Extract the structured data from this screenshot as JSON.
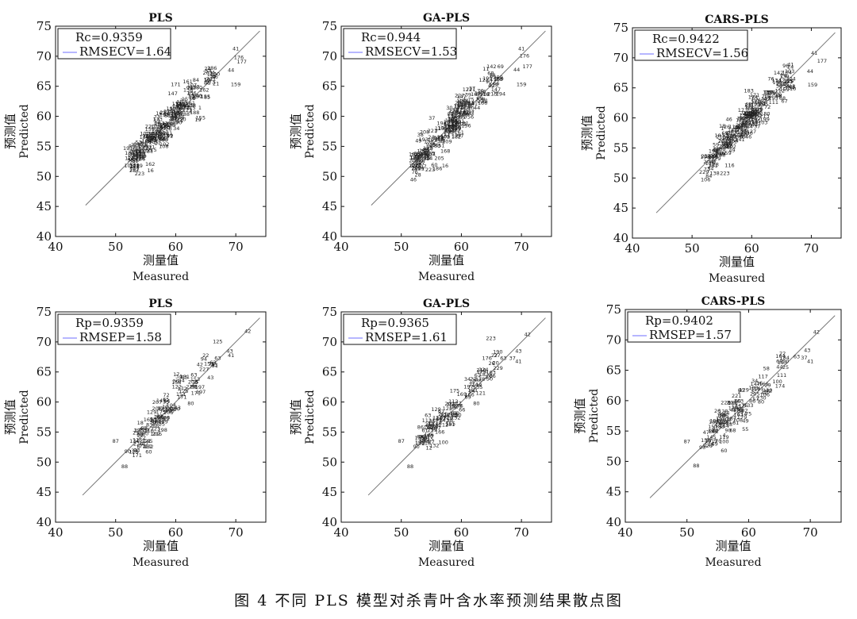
{
  "caption": "图 4   不同 PLS 模型对杀青叶含水率预测结果散点图",
  "chart_data": [
    {
      "type": "scatter",
      "title": "PLS",
      "xlabel_cn": "测量值",
      "xlabel_en": "Measured",
      "ylabel_cn": "预测值",
      "ylabel_en": "Predicted",
      "xlim": [
        40,
        75
      ],
      "ylim": [
        40,
        75
      ],
      "xticks": [
        40,
        50,
        60,
        70
      ],
      "yticks": [
        40,
        45,
        50,
        55,
        60,
        65,
        70,
        75
      ],
      "legend": [
        "Rc=0.9359",
        "RMSECV=1.64"
      ],
      "legend_position": "top-left",
      "line": [
        [
          45,
          45.2
        ],
        [
          74,
          74.2
        ]
      ],
      "labeled_points": [
        {
          "x": 70.0,
          "y": 71.0,
          "label": "41"
        },
        {
          "x": 70.5,
          "y": 69.5,
          "label": "176"
        },
        {
          "x": 71.0,
          "y": 68.8,
          "label": "177"
        },
        {
          "x": 70.0,
          "y": 65.0,
          "label": "159"
        },
        {
          "x": 69.2,
          "y": 67.4,
          "label": "44"
        },
        {
          "x": 65.3,
          "y": 67.7,
          "label": "24"
        },
        {
          "x": 60.0,
          "y": 65.0,
          "label": "171"
        },
        {
          "x": 59.5,
          "y": 63.5,
          "label": "147"
        },
        {
          "x": 62.0,
          "y": 65.5,
          "label": "161"
        },
        {
          "x": 57.5,
          "y": 60.2,
          "label": "163"
        },
        {
          "x": 57.0,
          "y": 59.2,
          "label": "173"
        },
        {
          "x": 53.7,
          "y": 51.5,
          "label": "229"
        },
        {
          "x": 53.1,
          "y": 50.7,
          "label": "287"
        },
        {
          "x": 54.0,
          "y": 50.2,
          "label": "223"
        },
        {
          "x": 55.8,
          "y": 50.7,
          "label": "16"
        },
        {
          "x": 62.5,
          "y": 60.5,
          "label": "4"
        }
      ]
    },
    {
      "type": "scatter",
      "title": "GA-PLS",
      "xlabel_cn": "测量值",
      "xlabel_en": "Measured",
      "ylabel_cn": "预测值",
      "ylabel_en": "Predicted",
      "xlim": [
        40,
        75
      ],
      "ylim": [
        40,
        75
      ],
      "xticks": [
        40,
        50,
        60,
        70
      ],
      "yticks": [
        40,
        45,
        50,
        55,
        60,
        65,
        70,
        75
      ],
      "legend": [
        "Rc=0.944",
        "RMSECV=1.53"
      ],
      "legend_position": "top-left",
      "line": [
        [
          45,
          45.2
        ],
        [
          74,
          74.2
        ]
      ],
      "labeled_points": [
        {
          "x": 70.0,
          "y": 71.0,
          "label": "41"
        },
        {
          "x": 70.5,
          "y": 69.8,
          "label": "176"
        },
        {
          "x": 71.0,
          "y": 68.0,
          "label": "177"
        },
        {
          "x": 70.0,
          "y": 65.0,
          "label": "159"
        },
        {
          "x": 69.2,
          "y": 67.5,
          "label": "44"
        },
        {
          "x": 65.0,
          "y": 68.0,
          "label": "142"
        },
        {
          "x": 61.0,
          "y": 64.2,
          "label": "171"
        },
        {
          "x": 60.0,
          "y": 63.0,
          "label": "147"
        },
        {
          "x": 58.5,
          "y": 57.5,
          "label": "232"
        },
        {
          "x": 53.0,
          "y": 51.0,
          "label": "229"
        },
        {
          "x": 56.0,
          "y": 51.0,
          "label": "186"
        },
        {
          "x": 57.3,
          "y": 51.5,
          "label": "16"
        },
        {
          "x": 54.8,
          "y": 50.8,
          "label": "223"
        },
        {
          "x": 55.5,
          "y": 51.6,
          "label": "60"
        }
      ]
    },
    {
      "type": "scatter",
      "title": "CARS-PLS",
      "xlabel_cn": "测量值",
      "xlabel_en": "Measured",
      "ylabel_cn": "预测值",
      "ylabel_en": "Predicted",
      "xlim": [
        40,
        75
      ],
      "ylim": [
        40,
        75
      ],
      "xticks": [
        40,
        50,
        60,
        70
      ],
      "yticks": [
        40,
        45,
        50,
        55,
        60,
        65,
        70,
        75
      ],
      "legend": [
        "Rc=0.9422",
        "RMSECV=1.56"
      ],
      "legend_position": "top-left",
      "line": [
        [
          44,
          44.2
        ],
        [
          74,
          74.2
        ]
      ],
      "labeled_points": [
        {
          "x": 70.5,
          "y": 70.5,
          "label": "41"
        },
        {
          "x": 71.8,
          "y": 69.2,
          "label": "177"
        },
        {
          "x": 70.2,
          "y": 65.2,
          "label": "159"
        },
        {
          "x": 69.8,
          "y": 67.5,
          "label": "44"
        },
        {
          "x": 66.5,
          "y": 68.2,
          "label": "24"
        },
        {
          "x": 64.5,
          "y": 67.2,
          "label": "142"
        },
        {
          "x": 60.5,
          "y": 63.5,
          "label": "171"
        },
        {
          "x": 58.5,
          "y": 61.0,
          "label": "173"
        },
        {
          "x": 58.0,
          "y": 58.0,
          "label": "61"
        },
        {
          "x": 52.0,
          "y": 50.7,
          "label": "229"
        },
        {
          "x": 55.5,
          "y": 50.5,
          "label": "223"
        },
        {
          "x": 56.3,
          "y": 51.8,
          "label": "116"
        },
        {
          "x": 56.7,
          "y": 54.3,
          "label": "49"
        },
        {
          "x": 65.5,
          "y": 62.5,
          "label": "67"
        }
      ]
    },
    {
      "type": "scatter",
      "title": "PLS",
      "xlabel_cn": "测量值",
      "xlabel_en": "Measured",
      "ylabel_cn": "预测值",
      "ylabel_en": "Predicted",
      "xlim": [
        40,
        75
      ],
      "ylim": [
        40,
        75
      ],
      "xticks": [
        40,
        50,
        60,
        70
      ],
      "yticks": [
        40,
        45,
        50,
        55,
        60,
        65,
        70,
        75
      ],
      "legend": [
        "Rp=0.9359",
        "RMSEP=1.58"
      ],
      "legend_position": "top-left",
      "line": [
        [
          44.5,
          44.5
        ],
        [
          74,
          74
        ]
      ],
      "labeled_points": [
        {
          "x": 72.0,
          "y": 71.5,
          "label": "42"
        },
        {
          "x": 69.0,
          "y": 68.2,
          "label": "43"
        },
        {
          "x": 65.0,
          "y": 67.5,
          "label": "22"
        },
        {
          "x": 67.0,
          "y": 67.0,
          "label": "63"
        },
        {
          "x": 66.0,
          "y": 66.0,
          "label": "75"
        },
        {
          "x": 69.2,
          "y": 67.5,
          "label": "41"
        },
        {
          "x": 60.5,
          "y": 64.0,
          "label": "34"
        },
        {
          "x": 60.0,
          "y": 63.2,
          "label": "36"
        },
        {
          "x": 62.5,
          "y": 59.5,
          "label": "80"
        },
        {
          "x": 56.0,
          "y": 58.0,
          "label": "129"
        },
        {
          "x": 50.0,
          "y": 53.2,
          "label": "87"
        },
        {
          "x": 52.0,
          "y": 51.5,
          "label": "90"
        },
        {
          "x": 53.5,
          "y": 51.7,
          "label": "93"
        },
        {
          "x": 55.5,
          "y": 51.4,
          "label": "60"
        },
        {
          "x": 55.5,
          "y": 52.3,
          "label": "132"
        },
        {
          "x": 51.5,
          "y": 49.0,
          "label": "88"
        }
      ]
    },
    {
      "type": "scatter",
      "title": "GA-PLS",
      "xlabel_cn": "测量值",
      "xlabel_en": "Measured",
      "ylabel_cn": "预测值",
      "ylabel_en": "Predicted",
      "xlim": [
        40,
        75
      ],
      "ylim": [
        40,
        75
      ],
      "xticks": [
        40,
        50,
        60,
        70
      ],
      "yticks": [
        40,
        45,
        50,
        55,
        60,
        65,
        70,
        75
      ],
      "legend": [
        "Rp=0.9365",
        "RMSEP=1.61"
      ],
      "legend_position": "top-left",
      "line": [
        [
          44.5,
          44.5
        ],
        [
          74,
          74
        ]
      ],
      "labeled_points": [
        {
          "x": 71.0,
          "y": 71.0,
          "label": "42"
        },
        {
          "x": 69.5,
          "y": 68.2,
          "label": "43"
        },
        {
          "x": 65.5,
          "y": 67.5,
          "label": "22"
        },
        {
          "x": 67.0,
          "y": 67.0,
          "label": "63"
        },
        {
          "x": 68.5,
          "y": 67.0,
          "label": "37"
        },
        {
          "x": 69.5,
          "y": 66.5,
          "label": "41"
        },
        {
          "x": 61.0,
          "y": 63.5,
          "label": "34"
        },
        {
          "x": 62.5,
          "y": 59.5,
          "label": "80"
        },
        {
          "x": 55.8,
          "y": 58.5,
          "label": "129"
        },
        {
          "x": 50.0,
          "y": 53.2,
          "label": "87"
        },
        {
          "x": 52.5,
          "y": 52.3,
          "label": "90"
        },
        {
          "x": 57.0,
          "y": 53.0,
          "label": "100"
        },
        {
          "x": 51.5,
          "y": 49.0,
          "label": "88"
        },
        {
          "x": 55.5,
          "y": 52.5,
          "label": "132"
        }
      ]
    },
    {
      "type": "scatter",
      "title": "CARS-PLS",
      "xlabel_cn": "测量值",
      "xlabel_en": "Measured",
      "ylabel_cn": "预测值",
      "ylabel_en": "Predicted",
      "xlim": [
        40,
        75
      ],
      "ylim": [
        40,
        75
      ],
      "xticks": [
        40,
        50,
        60,
        70
      ],
      "yticks": [
        40,
        45,
        50,
        55,
        60,
        65,
        70,
        75
      ],
      "legend": [
        "Rp=0.9402",
        "RMSEP=1.57"
      ],
      "legend_position": "top-left",
      "line": [
        [
          44,
          44
        ],
        [
          74,
          74
        ]
      ],
      "labeled_points": [
        {
          "x": 71.0,
          "y": 71.0,
          "label": "42"
        },
        {
          "x": 69.5,
          "y": 68.0,
          "label": "43"
        },
        {
          "x": 67.8,
          "y": 67.0,
          "label": "63"
        },
        {
          "x": 69.0,
          "y": 66.8,
          "label": "37"
        },
        {
          "x": 70.0,
          "y": 66.2,
          "label": "41"
        },
        {
          "x": 65.5,
          "y": 67.5,
          "label": "22"
        },
        {
          "x": 65.0,
          "y": 66.2,
          "label": "68"
        },
        {
          "x": 66.0,
          "y": 65.2,
          "label": "25"
        },
        {
          "x": 61.0,
          "y": 63.0,
          "label": "34"
        },
        {
          "x": 62.0,
          "y": 59.5,
          "label": "80"
        },
        {
          "x": 57.5,
          "y": 58.5,
          "label": "129"
        },
        {
          "x": 50.0,
          "y": 53.0,
          "label": "87"
        },
        {
          "x": 52.5,
          "y": 52.0,
          "label": "90"
        },
        {
          "x": 56.0,
          "y": 53.0,
          "label": "100"
        },
        {
          "x": 51.5,
          "y": 49.0,
          "label": "88"
        },
        {
          "x": 56.0,
          "y": 51.5,
          "label": "60"
        }
      ]
    }
  ]
}
